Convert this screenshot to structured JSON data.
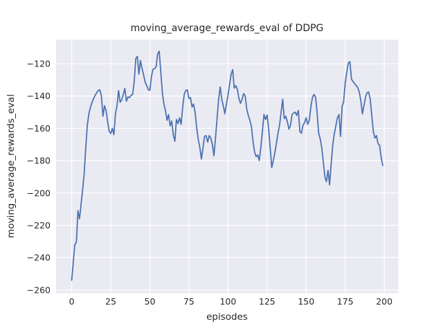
{
  "figure": {
    "title": "moving_average_rewards_eval of DDPG",
    "xlabel": "episodes",
    "ylabel": "moving_average_rewards_eval"
  },
  "chart_data": {
    "type": "line",
    "title": "moving_average_rewards_eval of DDPG",
    "xlabel": "episodes",
    "ylabel": "moving_average_rewards_eval",
    "legend": null,
    "grid": true,
    "style": "seaborn-darkgrid",
    "x_ticks": [
      0,
      25,
      50,
      75,
      100,
      125,
      150,
      175,
      200
    ],
    "y_ticks": [
      -260,
      -240,
      -220,
      -200,
      -180,
      -160,
      -140,
      -120
    ],
    "xlim": [
      -10,
      209
    ],
    "ylim": [
      -262,
      -105.2
    ],
    "x_start": 0,
    "x_step": 1,
    "series": [
      {
        "name": "moving_average_rewards_eval",
        "color": "#4C72B0",
        "values": [
          -254,
          -243,
          -232,
          -230.5,
          -211,
          -216,
          -207,
          -198,
          -188,
          -172,
          -158,
          -151,
          -147,
          -144,
          -141.5,
          -139.5,
          -138,
          -136.5,
          -136.2,
          -140,
          -152.5,
          -146,
          -149,
          -156,
          -161.8,
          -163.2,
          -160,
          -163.9,
          -151,
          -146,
          -136.6,
          -143.8,
          -142.3,
          -139,
          -135.3,
          -143.2,
          -140.5,
          -141,
          -139.5,
          -139,
          -131,
          -117,
          -115.5,
          -126.5,
          -118,
          -123,
          -127,
          -131.5,
          -133.5,
          -136,
          -136.5,
          -128,
          -123.5,
          -123,
          -122,
          -114,
          -112.3,
          -125,
          -138,
          -145,
          -149,
          -155,
          -151.5,
          -158.5,
          -155.5,
          -164,
          -168,
          -154.5,
          -157,
          -153.5,
          -157.5,
          -147,
          -139,
          -136.5,
          -136.2,
          -141.5,
          -141,
          -146.8,
          -145,
          -150.5,
          -160,
          -167,
          -172,
          -179,
          -172,
          -165,
          -164.5,
          -168.5,
          -164.5,
          -166,
          -170,
          -177,
          -166,
          -154,
          -142,
          -134.4,
          -142,
          -146,
          -151,
          -145,
          -139.5,
          -133,
          -126.5,
          -123.7,
          -135.1,
          -133.5,
          -136,
          -141.5,
          -144.5,
          -142,
          -138.5,
          -140,
          -148,
          -152,
          -155,
          -159,
          -168,
          -174.5,
          -177.5,
          -176.5,
          -179.9,
          -172,
          -162,
          -151.5,
          -154.5,
          -151.8,
          -160.4,
          -172,
          -184.3,
          -180,
          -174.9,
          -169,
          -163,
          -158,
          -150,
          -142,
          -154,
          -152.5,
          -156,
          -160.5,
          -158,
          -151.5,
          -150.5,
          -150,
          -152,
          -149,
          -162,
          -163,
          -158,
          -156.5,
          -153.5,
          -157.5,
          -155,
          -147,
          -141,
          -139,
          -140.5,
          -150,
          -163,
          -166.5,
          -172,
          -181,
          -190,
          -193,
          -186,
          -195,
          -182,
          -170.6,
          -163.5,
          -158.5,
          -153.5,
          -151.5,
          -165,
          -146.5,
          -143.5,
          -132,
          -125,
          -119.5,
          -118.7,
          -129.5,
          -131,
          -132.3,
          -133.5,
          -134.8,
          -137.5,
          -143,
          -151,
          -146,
          -140.5,
          -138,
          -137.5,
          -142,
          -152,
          -162,
          -166,
          -164.5,
          -169.5,
          -170.5,
          -178,
          -183
        ]
      }
    ],
    "colors": {
      "figure_background": "#ffffff",
      "axes_background": "#EAEAF2",
      "gridline": "#ffffff",
      "line": "#4C72B0",
      "text": "#262626"
    }
  }
}
